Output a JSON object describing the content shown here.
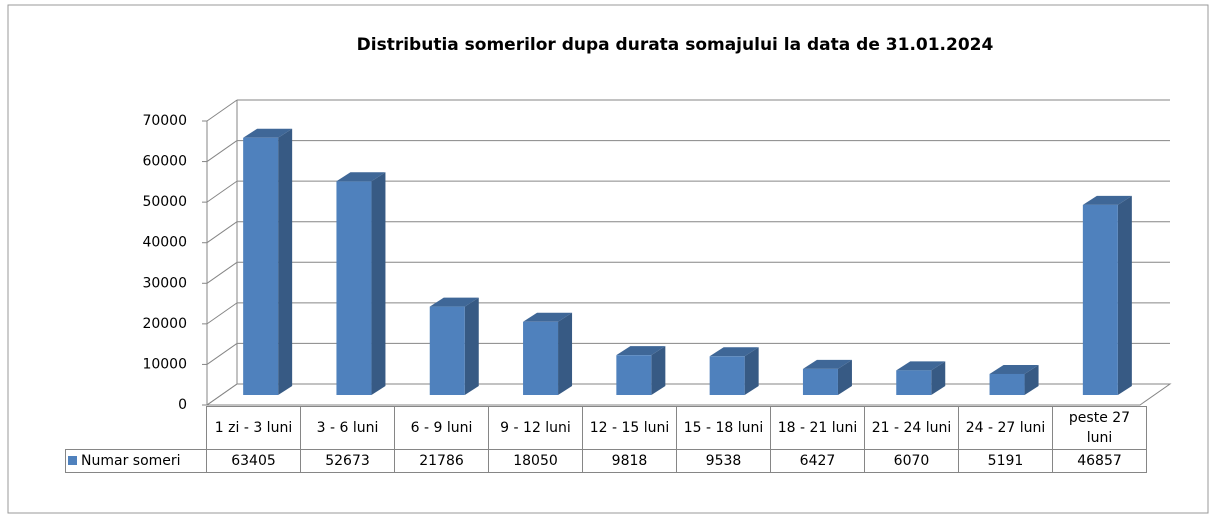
{
  "chart_data": {
    "type": "bar3d",
    "title": "Distributia somerilor dupa durata somajului la data de 31.01.2024",
    "categories": [
      "1 zi - 3 luni",
      "3 - 6 luni",
      "6 - 9 luni",
      "9 - 12 luni",
      "12 - 15 luni",
      "15 - 18 luni",
      "18 - 21 luni",
      "21 - 24 luni",
      "24 - 27 luni",
      "peste 27 luni"
    ],
    "series": [
      {
        "name": "Numar someri",
        "color": "#4f81bd",
        "values": [
          63405,
          52673,
          21786,
          18050,
          9818,
          9538,
          6427,
          6070,
          5191,
          46857
        ]
      }
    ],
    "ylim": [
      0,
      70000
    ],
    "yticks": [
      0,
      10000,
      20000,
      30000,
      40000,
      50000,
      60000,
      70000
    ],
    "grid": true
  }
}
